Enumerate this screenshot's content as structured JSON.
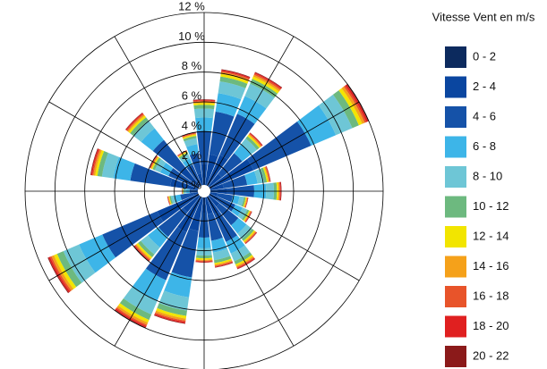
{
  "chart_data": {
    "type": "windrose",
    "legend_title": "Vitesse Vent en m/s",
    "categories": [
      null,
      null,
      null,
      null,
      null,
      null,
      null,
      null,
      null,
      null,
      null,
      null,
      null,
      null,
      null,
      null,
      null,
      null,
      null,
      null,
      null,
      null,
      null,
      null
    ],
    "rlim": [
      0,
      12
    ],
    "rticks": [
      {
        "value": 0,
        "label": "0 %"
      },
      {
        "value": 2,
        "label": "2 %"
      },
      {
        "value": 4,
        "label": "4 %"
      },
      {
        "value": 6,
        "label": "6 %"
      },
      {
        "value": 8,
        "label": "8 %"
      },
      {
        "value": 10,
        "label": "10 %"
      },
      {
        "value": 12,
        "label": "12 %"
      }
    ],
    "series": [
      {
        "name": "0 - 2",
        "color": "#0c2a5e",
        "values": [
          0.3,
          0.4,
          0.45,
          0.25,
          0.6,
          0.22,
          0.26,
          0.15,
          0.18,
          0.22,
          0.28,
          0.26,
          0.24,
          0.45,
          0.5,
          0.3,
          0.57,
          0.12,
          0.08,
          0.38,
          0.2,
          0.34,
          0.15,
          0.2
        ]
      },
      {
        "name": "2 - 4",
        "color": "#0a46a0",
        "values": [
          1.55,
          2.1,
          2.2,
          1.25,
          3.0,
          1.1,
          1.3,
          0.75,
          0.88,
          1.1,
          1.42,
          1.3,
          1.2,
          2.25,
          2.5,
          1.5,
          2.85,
          0.62,
          0.38,
          1.92,
          1.0,
          1.68,
          0.75,
          1.0
        ]
      },
      {
        "name": "4 - 6",
        "color": "#1552a8",
        "values": [
          2.2,
          2.9,
          3.0,
          1.75,
          4.2,
          1.6,
          1.8,
          1.05,
          1.22,
          1.6,
          2.0,
          1.8,
          1.68,
          3.15,
          3.5,
          2.1,
          4.0,
          0.88,
          0.52,
          2.7,
          1.4,
          2.35,
          1.05,
          1.4
        ]
      },
      {
        "name": "6 - 8",
        "color": "#3db5e8",
        "values": [
          0.9,
          1.25,
          1.3,
          0.75,
          1.8,
          0.7,
          0.8,
          0.45,
          0.52,
          0.7,
          0.85,
          0.8,
          0.72,
          1.35,
          1.5,
          0.9,
          1.7,
          0.38,
          0.22,
          1.15,
          0.6,
          1.0,
          0.45,
          0.6
        ]
      },
      {
        "name": "8 - 10",
        "color": "#6ec6d6",
        "values": [
          0.6,
          0.8,
          0.9,
          0.5,
          1.2,
          0.45,
          0.52,
          0.3,
          0.35,
          0.45,
          0.57,
          0.52,
          0.48,
          0.9,
          1.0,
          0.6,
          1.14,
          0.25,
          0.15,
          0.77,
          0.4,
          0.67,
          0.3,
          0.4
        ]
      },
      {
        "name": "10 - 12",
        "color": "#6db97f",
        "values": [
          0.25,
          0.33,
          0.35,
          0.2,
          0.48,
          0.18,
          0.2,
          0.12,
          0.14,
          0.18,
          0.23,
          0.2,
          0.19,
          0.36,
          0.4,
          0.24,
          0.46,
          0.1,
          0.06,
          0.31,
          0.16,
          0.27,
          0.12,
          0.16
        ]
      },
      {
        "name": "12 - 14",
        "color": "#f2e500",
        "values": [
          0.12,
          0.17,
          0.17,
          0.1,
          0.24,
          0.09,
          0.1,
          0.06,
          0.07,
          0.09,
          0.11,
          0.1,
          0.1,
          0.18,
          0.2,
          0.12,
          0.23,
          0.05,
          0.03,
          0.15,
          0.08,
          0.13,
          0.06,
          0.08
        ]
      },
      {
        "name": "14 - 16",
        "color": "#f5a11a",
        "values": [
          0.1,
          0.12,
          0.13,
          0.08,
          0.18,
          0.07,
          0.08,
          0.05,
          0.05,
          0.07,
          0.09,
          0.08,
          0.07,
          0.14,
          0.15,
          0.09,
          0.17,
          0.04,
          0.02,
          0.12,
          0.06,
          0.1,
          0.05,
          0.06
        ]
      },
      {
        "name": "16 - 18",
        "color": "#e8542a",
        "values": [
          0.06,
          0.08,
          0.09,
          0.05,
          0.12,
          0.04,
          0.05,
          0.03,
          0.04,
          0.04,
          0.06,
          0.05,
          0.05,
          0.09,
          0.1,
          0.06,
          0.11,
          0.03,
          0.02,
          0.08,
          0.04,
          0.07,
          0.03,
          0.04
        ]
      },
      {
        "name": "18 - 20",
        "color": "#e02020",
        "values": [
          0.06,
          0.08,
          0.08,
          0.05,
          0.12,
          0.04,
          0.05,
          0.03,
          0.03,
          0.04,
          0.06,
          0.05,
          0.05,
          0.09,
          0.1,
          0.06,
          0.11,
          0.02,
          0.01,
          0.08,
          0.04,
          0.07,
          0.03,
          0.04
        ]
      },
      {
        "name": "20 - 22",
        "color": "#8b1a1a",
        "values": [
          0.03,
          0.04,
          0.04,
          0.02,
          0.06,
          0.02,
          0.03,
          0.01,
          0.02,
          0.02,
          0.03,
          0.03,
          0.02,
          0.04,
          0.05,
          0.03,
          0.06,
          0.01,
          0.01,
          0.04,
          0.02,
          0.03,
          0.01,
          0.02
        ]
      }
    ]
  }
}
